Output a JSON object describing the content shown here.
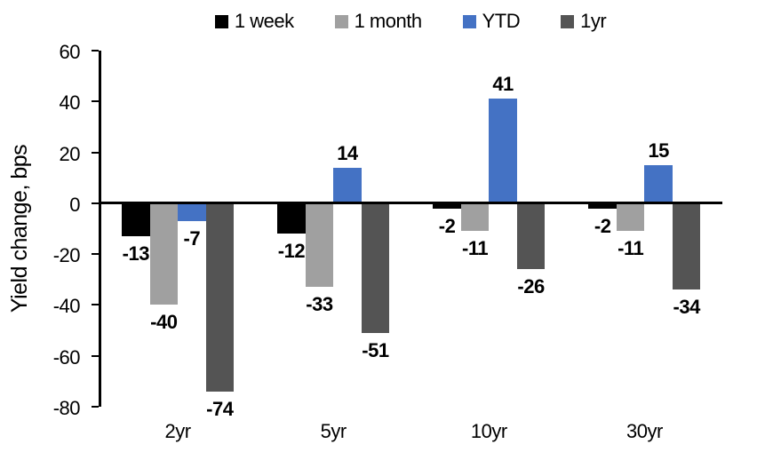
{
  "chart_data": {
    "type": "bar",
    "title": "",
    "xlabel": "",
    "ylabel": "Yield change, bps",
    "categories": [
      "2yr",
      "5yr",
      "10yr",
      "30yr"
    ],
    "series": [
      {
        "name": "1 week",
        "color": "#000000",
        "values": [
          -13,
          -12,
          -2,
          -2
        ]
      },
      {
        "name": "1 month",
        "color": "#A0A0A0",
        "values": [
          -40,
          -33,
          -11,
          -11
        ]
      },
      {
        "name": "YTD",
        "color": "#4472C4",
        "values": [
          -7,
          14,
          41,
          15
        ]
      },
      {
        "name": "1yr",
        "color": "#545454",
        "values": [
          -74,
          -51,
          -26,
          -34
        ]
      }
    ],
    "yticks": [
      60,
      40,
      20,
      0,
      -20,
      -40,
      -60,
      -80
    ],
    "ylim": [
      -80,
      60
    ],
    "grid": false,
    "legend_position": "top",
    "data_labels": true,
    "colors": {
      "axis": "#000000",
      "background": "#FFFFFF"
    }
  }
}
